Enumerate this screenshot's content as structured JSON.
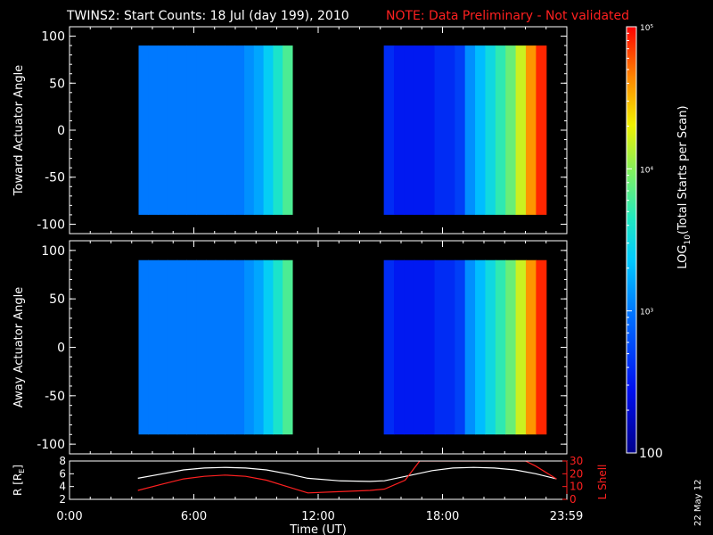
{
  "title": {
    "main": "TWINS2: Start Counts: 18 Jul (day 199), 2010",
    "note": "NOTE: Data Preliminary - Not validated",
    "note_color": "#ff2020"
  },
  "side_label": "22 May 12",
  "colorbar": {
    "label": "LOG10(Total Starts per Scan)",
    "label_prefix": "LOG",
    "label_sub": "10",
    "label_suffix": "(Total Starts per Scan)",
    "ticks": [
      {
        "value": 100,
        "text": "100"
      },
      {
        "value": 1000,
        "text": "10³"
      },
      {
        "value": 10000,
        "text": "10⁴"
      },
      {
        "value": 100000,
        "text": "10⁵"
      }
    ],
    "range": [
      100,
      100000
    ],
    "scale": "log"
  },
  "chart_data": [
    {
      "type": "heatmap",
      "ylabel": "Toward Actuator Angle",
      "ylim": [
        -110,
        110
      ],
      "yticks": [
        100,
        50,
        0,
        -50,
        -100
      ],
      "xlim_hours": [
        0,
        24
      ],
      "data_blocks": [
        {
          "start": "3:20",
          "end": "10:45"
        },
        {
          "start": "15:10",
          "end": "23:00"
        }
      ],
      "column_log_counts": [
        3.0,
        3.0,
        3.0,
        3.0,
        3.0,
        3.0,
        3.0,
        3.0,
        3.0,
        3.0,
        3.0,
        3.1,
        3.2,
        3.4,
        3.6,
        3.8
      ],
      "column_log_counts_block2": [
        2.6,
        2.5,
        2.5,
        2.5,
        2.5,
        2.6,
        2.6,
        2.7,
        3.1,
        3.3,
        3.5,
        3.7,
        3.9,
        4.2,
        4.6,
        4.9
      ]
    },
    {
      "type": "heatmap",
      "ylabel": "Away Actuator Angle",
      "ylim": [
        -110,
        110
      ],
      "yticks": [
        100,
        50,
        0,
        -50,
        -100
      ],
      "xlim_hours": [
        0,
        24
      ],
      "data_blocks": [
        {
          "start": "3:20",
          "end": "10:45"
        },
        {
          "start": "15:10",
          "end": "23:00"
        }
      ],
      "column_log_counts": [
        3.0,
        3.0,
        3.0,
        3.0,
        3.0,
        3.0,
        3.0,
        3.0,
        3.0,
        3.0,
        3.0,
        3.1,
        3.2,
        3.4,
        3.6,
        3.8
      ],
      "column_log_counts_block2": [
        2.6,
        2.5,
        2.5,
        2.5,
        2.5,
        2.6,
        2.6,
        2.7,
        3.1,
        3.3,
        3.5,
        3.7,
        3.9,
        4.2,
        4.6,
        4.9
      ]
    },
    {
      "type": "line",
      "ylabel": "R [RE]",
      "ylabel_prefix": "R [R",
      "ylabel_sub": "E",
      "ylabel_suffix": "]",
      "ylim": [
        2,
        8
      ],
      "yticks": [
        2,
        4,
        6,
        8
      ],
      "y2label": "L Shell",
      "y2lim": [
        0,
        30
      ],
      "y2ticks": [
        0,
        10,
        20,
        30
      ],
      "y2_color": "#ff2020",
      "xlabel": "Time (UT)",
      "xticks": [
        {
          "hours": 0,
          "label": "0:00"
        },
        {
          "hours": 6,
          "label": "6:00"
        },
        {
          "hours": 12,
          "label": "12:00"
        },
        {
          "hours": 18,
          "label": "18:00"
        },
        {
          "hours": 23.98,
          "label": "23:59"
        }
      ],
      "series": [
        {
          "axis": "left",
          "color": "#ffffff",
          "x_hours": [
            3.3,
            4.5,
            5.5,
            6.5,
            7.5,
            8.5,
            9.5,
            10.5,
            11.5,
            13,
            14.5,
            15.2,
            16.5,
            17.5,
            18.5,
            19.5,
            20.5,
            21.5,
            22.5,
            23.5
          ],
          "y": [
            5.3,
            6.0,
            6.6,
            6.9,
            7.0,
            6.9,
            6.6,
            6.0,
            5.3,
            4.9,
            4.8,
            4.9,
            5.8,
            6.5,
            6.9,
            7.0,
            6.9,
            6.6,
            6.0,
            5.2
          ]
        },
        {
          "axis": "right",
          "color": "#ff2020",
          "x_hours": [
            3.3,
            4.5,
            5.5,
            6.5,
            7.5,
            8.5,
            9.5,
            10.5,
            11.5,
            13,
            14.5,
            15.2,
            16.2,
            16.9,
            22.0,
            22.5,
            23.5
          ],
          "y": [
            7,
            12,
            16,
            18,
            19,
            18,
            15,
            10,
            5,
            6,
            7,
            8,
            15,
            30,
            30,
            26,
            16
          ]
        }
      ]
    }
  ]
}
